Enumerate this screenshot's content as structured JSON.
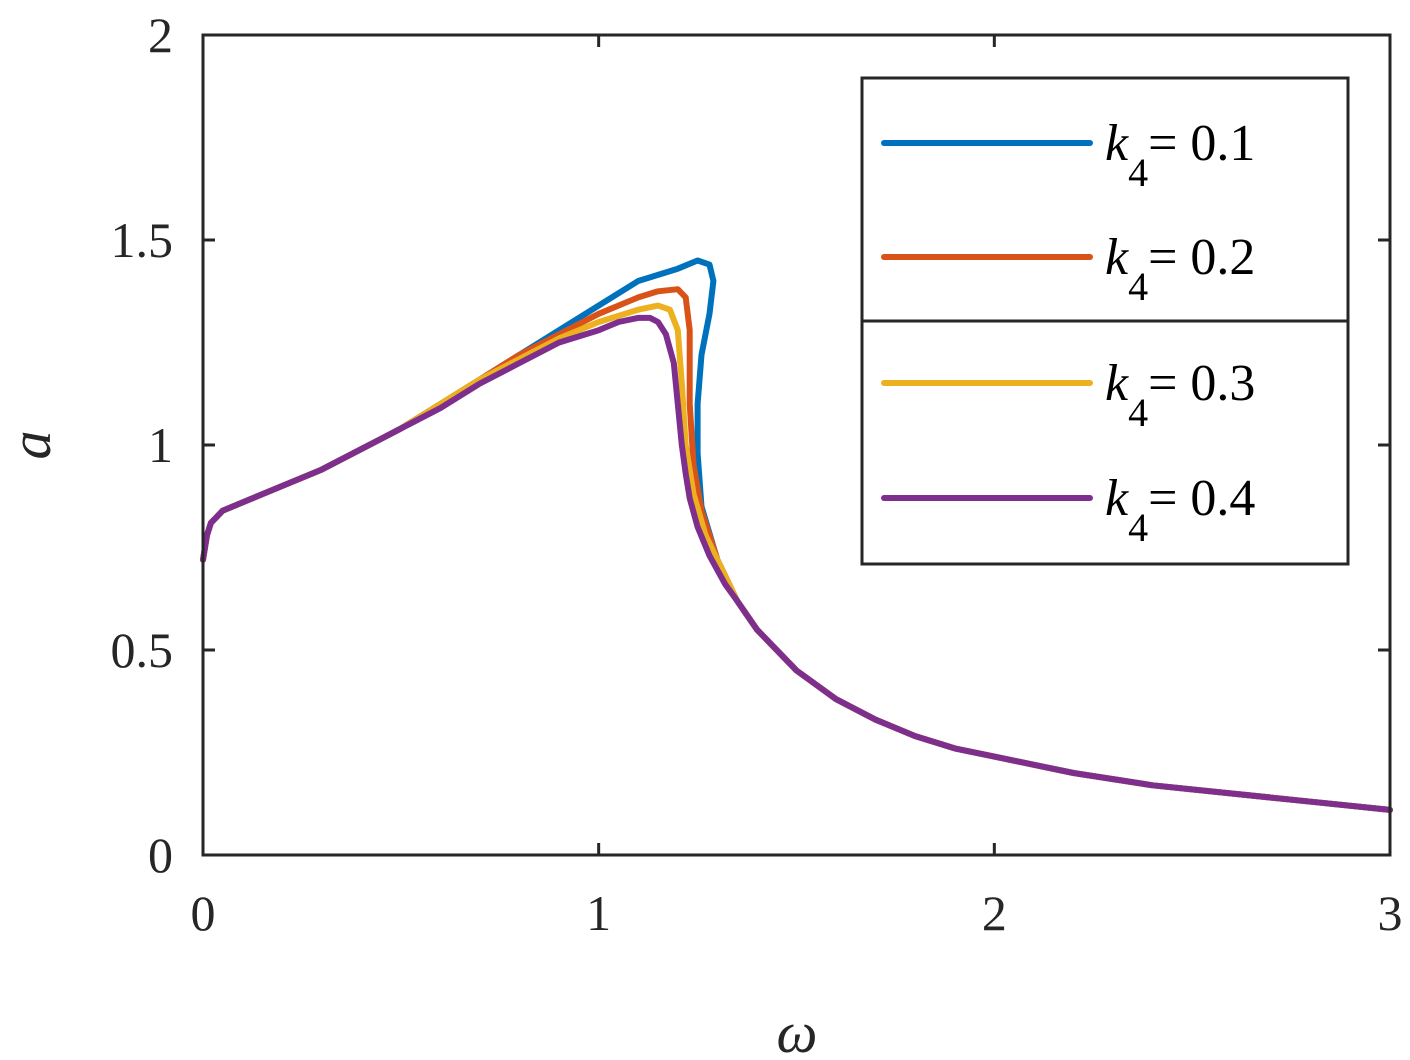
{
  "chart_data": {
    "type": "line",
    "xlabel": "ω",
    "ylabel": "a",
    "xlim": [
      0,
      3
    ],
    "ylim": [
      0,
      2
    ],
    "xticks": [
      "0",
      "1",
      "2",
      "3"
    ],
    "yticks": [
      "0",
      "0.5",
      "1",
      "1.5",
      "2"
    ],
    "grid": false,
    "legend_position": "top-right",
    "series": [
      {
        "name": "k4= 0.1",
        "legend": {
          "sym": "k",
          "sub": "4",
          "rest": "= 0.1"
        },
        "color": "#0072BD",
        "x": [
          0.0,
          0.01,
          0.02,
          0.05,
          0.1,
          0.2,
          0.3,
          0.4,
          0.5,
          0.6,
          0.7,
          0.8,
          0.9,
          1.0,
          1.1,
          1.2,
          1.25,
          1.28,
          1.29,
          1.28,
          1.26,
          1.25,
          1.25,
          1.26,
          1.3,
          1.35,
          1.4,
          1.5,
          1.6,
          1.7,
          1.8,
          1.9,
          2.0,
          2.2,
          2.4,
          2.6,
          2.8,
          3.0
        ],
        "y": [
          0.72,
          0.78,
          0.81,
          0.84,
          0.86,
          0.9,
          0.94,
          0.99,
          1.04,
          1.1,
          1.16,
          1.22,
          1.28,
          1.34,
          1.4,
          1.43,
          1.45,
          1.44,
          1.4,
          1.32,
          1.22,
          1.1,
          0.98,
          0.85,
          0.72,
          0.62,
          0.55,
          0.45,
          0.38,
          0.33,
          0.29,
          0.26,
          0.24,
          0.2,
          0.17,
          0.15,
          0.13,
          0.11
        ]
      },
      {
        "name": "k4= 0.2",
        "legend": {
          "sym": "k",
          "sub": "4",
          "rest": "= 0.2"
        },
        "color": "#D95319",
        "x": [
          0.0,
          0.01,
          0.02,
          0.05,
          0.1,
          0.2,
          0.3,
          0.4,
          0.5,
          0.6,
          0.7,
          0.8,
          0.9,
          1.0,
          1.1,
          1.15,
          1.2,
          1.22,
          1.23,
          1.23,
          1.24,
          1.26,
          1.3,
          1.35,
          1.4,
          1.5,
          1.6,
          1.7,
          1.8,
          1.9,
          2.0,
          2.2,
          2.4,
          2.6,
          2.8,
          3.0
        ],
        "y": [
          0.72,
          0.78,
          0.81,
          0.84,
          0.86,
          0.9,
          0.94,
          0.99,
          1.04,
          1.1,
          1.16,
          1.22,
          1.27,
          1.32,
          1.36,
          1.375,
          1.38,
          1.36,
          1.28,
          1.1,
          0.95,
          0.84,
          0.72,
          0.62,
          0.55,
          0.45,
          0.38,
          0.33,
          0.29,
          0.26,
          0.24,
          0.2,
          0.17,
          0.15,
          0.13,
          0.11
        ]
      },
      {
        "name": "k4= 0.3",
        "legend": {
          "sym": "k",
          "sub": "4",
          "rest": "= 0.3"
        },
        "color": "#EDB120",
        "x": [
          0.0,
          0.01,
          0.02,
          0.05,
          0.1,
          0.2,
          0.3,
          0.4,
          0.5,
          0.6,
          0.7,
          0.8,
          0.9,
          1.0,
          1.1,
          1.15,
          1.18,
          1.2,
          1.21,
          1.22,
          1.24,
          1.27,
          1.3,
          1.35,
          1.4,
          1.5,
          1.6,
          1.7,
          1.8,
          1.9,
          2.0,
          2.2,
          2.4,
          2.6,
          2.8,
          3.0
        ],
        "y": [
          0.72,
          0.78,
          0.81,
          0.84,
          0.86,
          0.9,
          0.94,
          0.99,
          1.04,
          1.1,
          1.16,
          1.21,
          1.26,
          1.3,
          1.33,
          1.34,
          1.33,
          1.28,
          1.15,
          1.0,
          0.88,
          0.78,
          0.72,
          0.62,
          0.55,
          0.45,
          0.38,
          0.33,
          0.29,
          0.26,
          0.24,
          0.2,
          0.17,
          0.15,
          0.13,
          0.11
        ]
      },
      {
        "name": "k4= 0.4",
        "legend": {
          "sym": "k",
          "sub": "4",
          "rest": "= 0.4"
        },
        "color": "#7E2F8E",
        "x": [
          0.0,
          0.01,
          0.02,
          0.05,
          0.1,
          0.2,
          0.3,
          0.4,
          0.5,
          0.6,
          0.7,
          0.8,
          0.9,
          1.0,
          1.05,
          1.1,
          1.13,
          1.15,
          1.17,
          1.19,
          1.2,
          1.21,
          1.22,
          1.23,
          1.25,
          1.28,
          1.32,
          1.35,
          1.4,
          1.5,
          1.6,
          1.7,
          1.8,
          1.9,
          2.0,
          2.2,
          2.4,
          2.6,
          2.8,
          3.0
        ],
        "y": [
          0.72,
          0.78,
          0.81,
          0.84,
          0.86,
          0.9,
          0.94,
          0.99,
          1.04,
          1.09,
          1.15,
          1.2,
          1.25,
          1.28,
          1.3,
          1.31,
          1.31,
          1.3,
          1.27,
          1.2,
          1.1,
          1.0,
          0.93,
          0.87,
          0.8,
          0.73,
          0.66,
          0.62,
          0.55,
          0.45,
          0.38,
          0.33,
          0.29,
          0.26,
          0.24,
          0.2,
          0.17,
          0.15,
          0.13,
          0.11
        ]
      }
    ]
  }
}
